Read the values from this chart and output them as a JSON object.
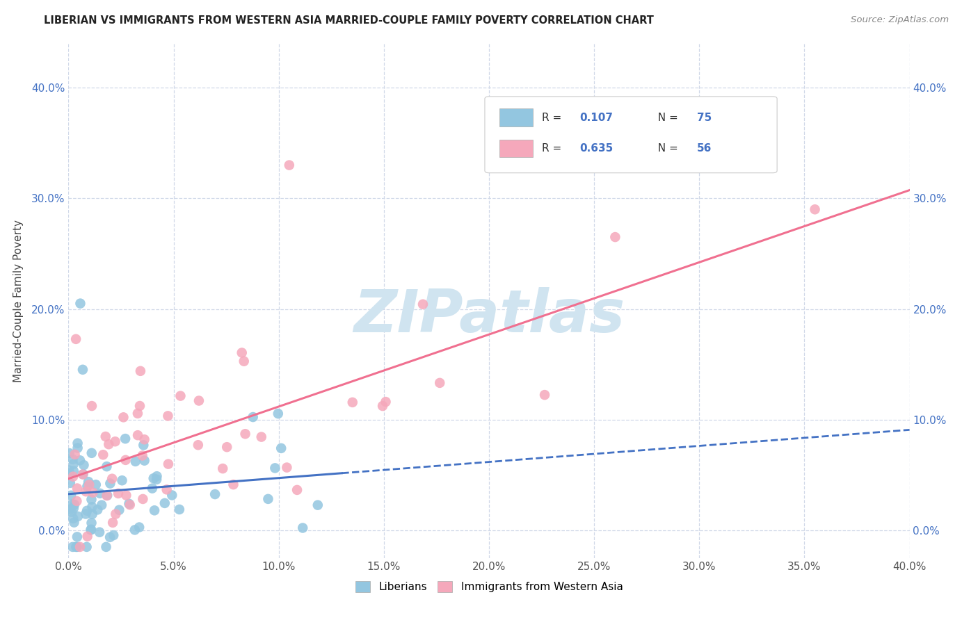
{
  "title": "LIBERIAN VS IMMIGRANTS FROM WESTERN ASIA MARRIED-COUPLE FAMILY POVERTY CORRELATION CHART",
  "source": "Source: ZipAtlas.com",
  "ylabel": "Married-Couple Family Poverty",
  "xlim": [
    0.0,
    0.4
  ],
  "ylim": [
    -0.025,
    0.44
  ],
  "xticks": [
    0.0,
    0.05,
    0.1,
    0.15,
    0.2,
    0.25,
    0.3,
    0.35,
    0.4
  ],
  "yticks": [
    0.0,
    0.1,
    0.2,
    0.3,
    0.4
  ],
  "legend_labels": [
    "Liberians",
    "Immigrants from Western Asia"
  ],
  "liberian_color": "#93c6e0",
  "western_asia_color": "#f5a8bb",
  "liberian_R": "0.107",
  "liberian_N": "75",
  "western_asia_R": "0.635",
  "western_asia_N": "56",
  "liberian_line_color": "#4472c4",
  "western_asia_line_color": "#f07090",
  "background_color": "#ffffff",
  "grid_color": "#d0d8e8",
  "watermark_color": "#d0e4f0",
  "title_color": "#222222",
  "source_color": "#888888",
  "tick_color_left": "#888888",
  "tick_color_right": "#4472c4",
  "legend_R_color": "#4472c4",
  "legend_N_color": "#4472c4"
}
